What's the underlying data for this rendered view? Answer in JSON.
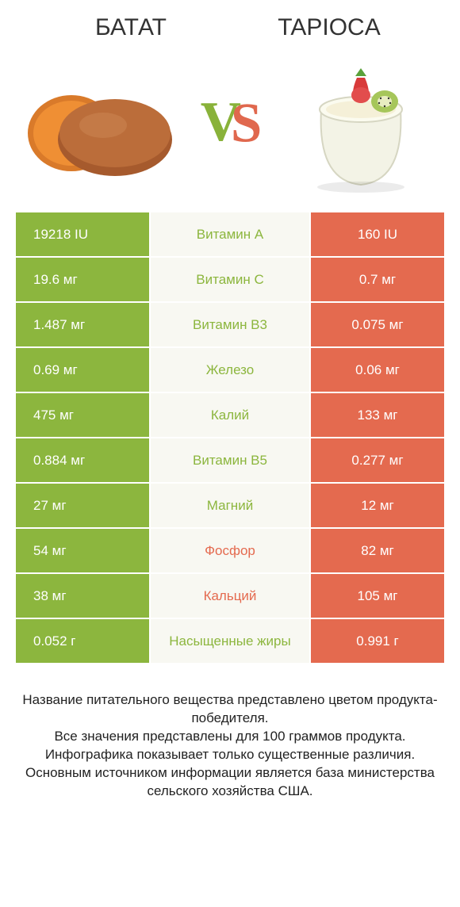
{
  "colors": {
    "green": "#8cb63e",
    "red": "#e46a4f",
    "mid_bg": "#f8f8f2",
    "row_border": "#ffffff",
    "text_dark": "#333333"
  },
  "header": {
    "left_title": "БАТАТ",
    "right_title": "TAPIOCA",
    "vs_label": "VS"
  },
  "table": {
    "type": "comparison-table",
    "rows": [
      {
        "left": "19218 IU",
        "mid": "Витамин A",
        "right": "160 IU",
        "winner": "left"
      },
      {
        "left": "19.6 мг",
        "mid": "Витамин C",
        "right": "0.7 мг",
        "winner": "left"
      },
      {
        "left": "1.487 мг",
        "mid": "Витамин B3",
        "right": "0.075 мг",
        "winner": "left"
      },
      {
        "left": "0.69 мг",
        "mid": "Железо",
        "right": "0.06 мг",
        "winner": "left"
      },
      {
        "left": "475 мг",
        "mid": "Калий",
        "right": "133 мг",
        "winner": "left"
      },
      {
        "left": "0.884 мг",
        "mid": "Витамин B5",
        "right": "0.277 мг",
        "winner": "left"
      },
      {
        "left": "27 мг",
        "mid": "Магний",
        "right": "12 мг",
        "winner": "left"
      },
      {
        "left": "54 мг",
        "mid": "Фосфор",
        "right": "82 мг",
        "winner": "right"
      },
      {
        "left": "38 мг",
        "mid": "Кальций",
        "right": "105 мг",
        "winner": "right"
      },
      {
        "left": "0.052 г",
        "mid": "Насыщенные жиры",
        "right": "0.991 г",
        "winner": "left"
      }
    ]
  },
  "footer": {
    "line1": "Название питательного вещества представлено цветом продукта-победителя.",
    "line2": "Все значения представлены для 100 граммов продукта.",
    "line3": "Инфографика показывает только существенные различия.",
    "line4": "Основным источником информации является база министерства сельского хозяйства США."
  }
}
